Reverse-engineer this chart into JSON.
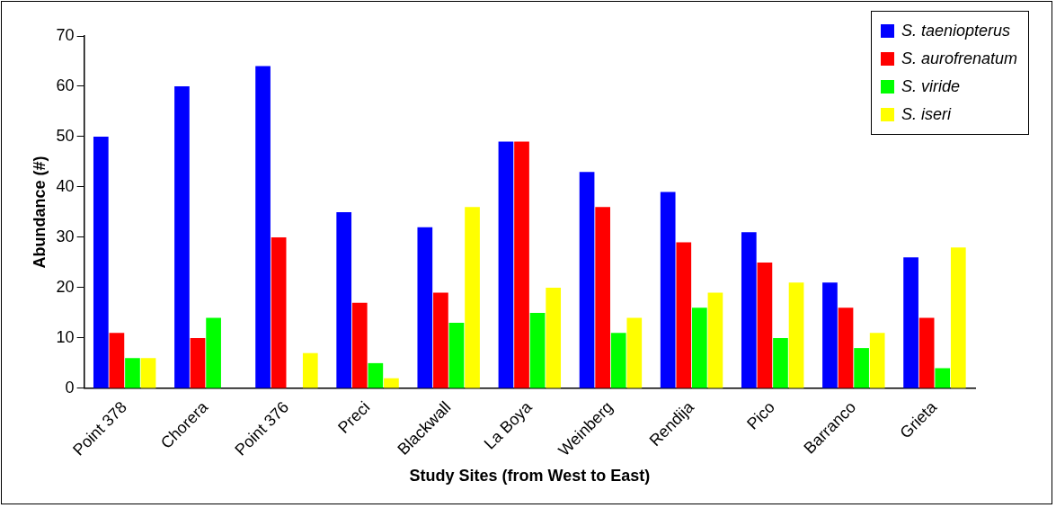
{
  "chart_data": {
    "type": "bar",
    "xlabel": "Study Sites (from West to East)",
    "ylabel": "Abundance (#)",
    "categories": [
      "Point 378",
      "Chorera",
      "Point 376",
      "Preci",
      "Blackwall",
      "La Boya",
      "Weinberg",
      "Rendija",
      "Pico",
      "Barranco",
      "Grieta"
    ],
    "series": [
      {
        "name": "S. taeniopterus",
        "color": "#0000ff",
        "values": [
          50,
          60,
          64,
          35,
          32,
          49,
          43,
          39,
          31,
          21,
          26
        ]
      },
      {
        "name": "S. aurofrenatum",
        "color": "#ff0000",
        "values": [
          11,
          10,
          30,
          17,
          19,
          49,
          36,
          29,
          25,
          16,
          14
        ]
      },
      {
        "name": "S. viride",
        "color": "#00ff00",
        "values": [
          6,
          14,
          0,
          5,
          13,
          15,
          11,
          16,
          10,
          8,
          4
        ]
      },
      {
        "name": "S. iseri",
        "color": "#ffff00",
        "values": [
          6,
          0,
          7,
          2,
          36,
          20,
          14,
          19,
          21,
          11,
          28
        ]
      }
    ],
    "ylim": [
      0,
      70
    ],
    "yticks": [
      0,
      10,
      20,
      30,
      40,
      50,
      60,
      70
    ],
    "grid": false,
    "legend": "top right"
  }
}
